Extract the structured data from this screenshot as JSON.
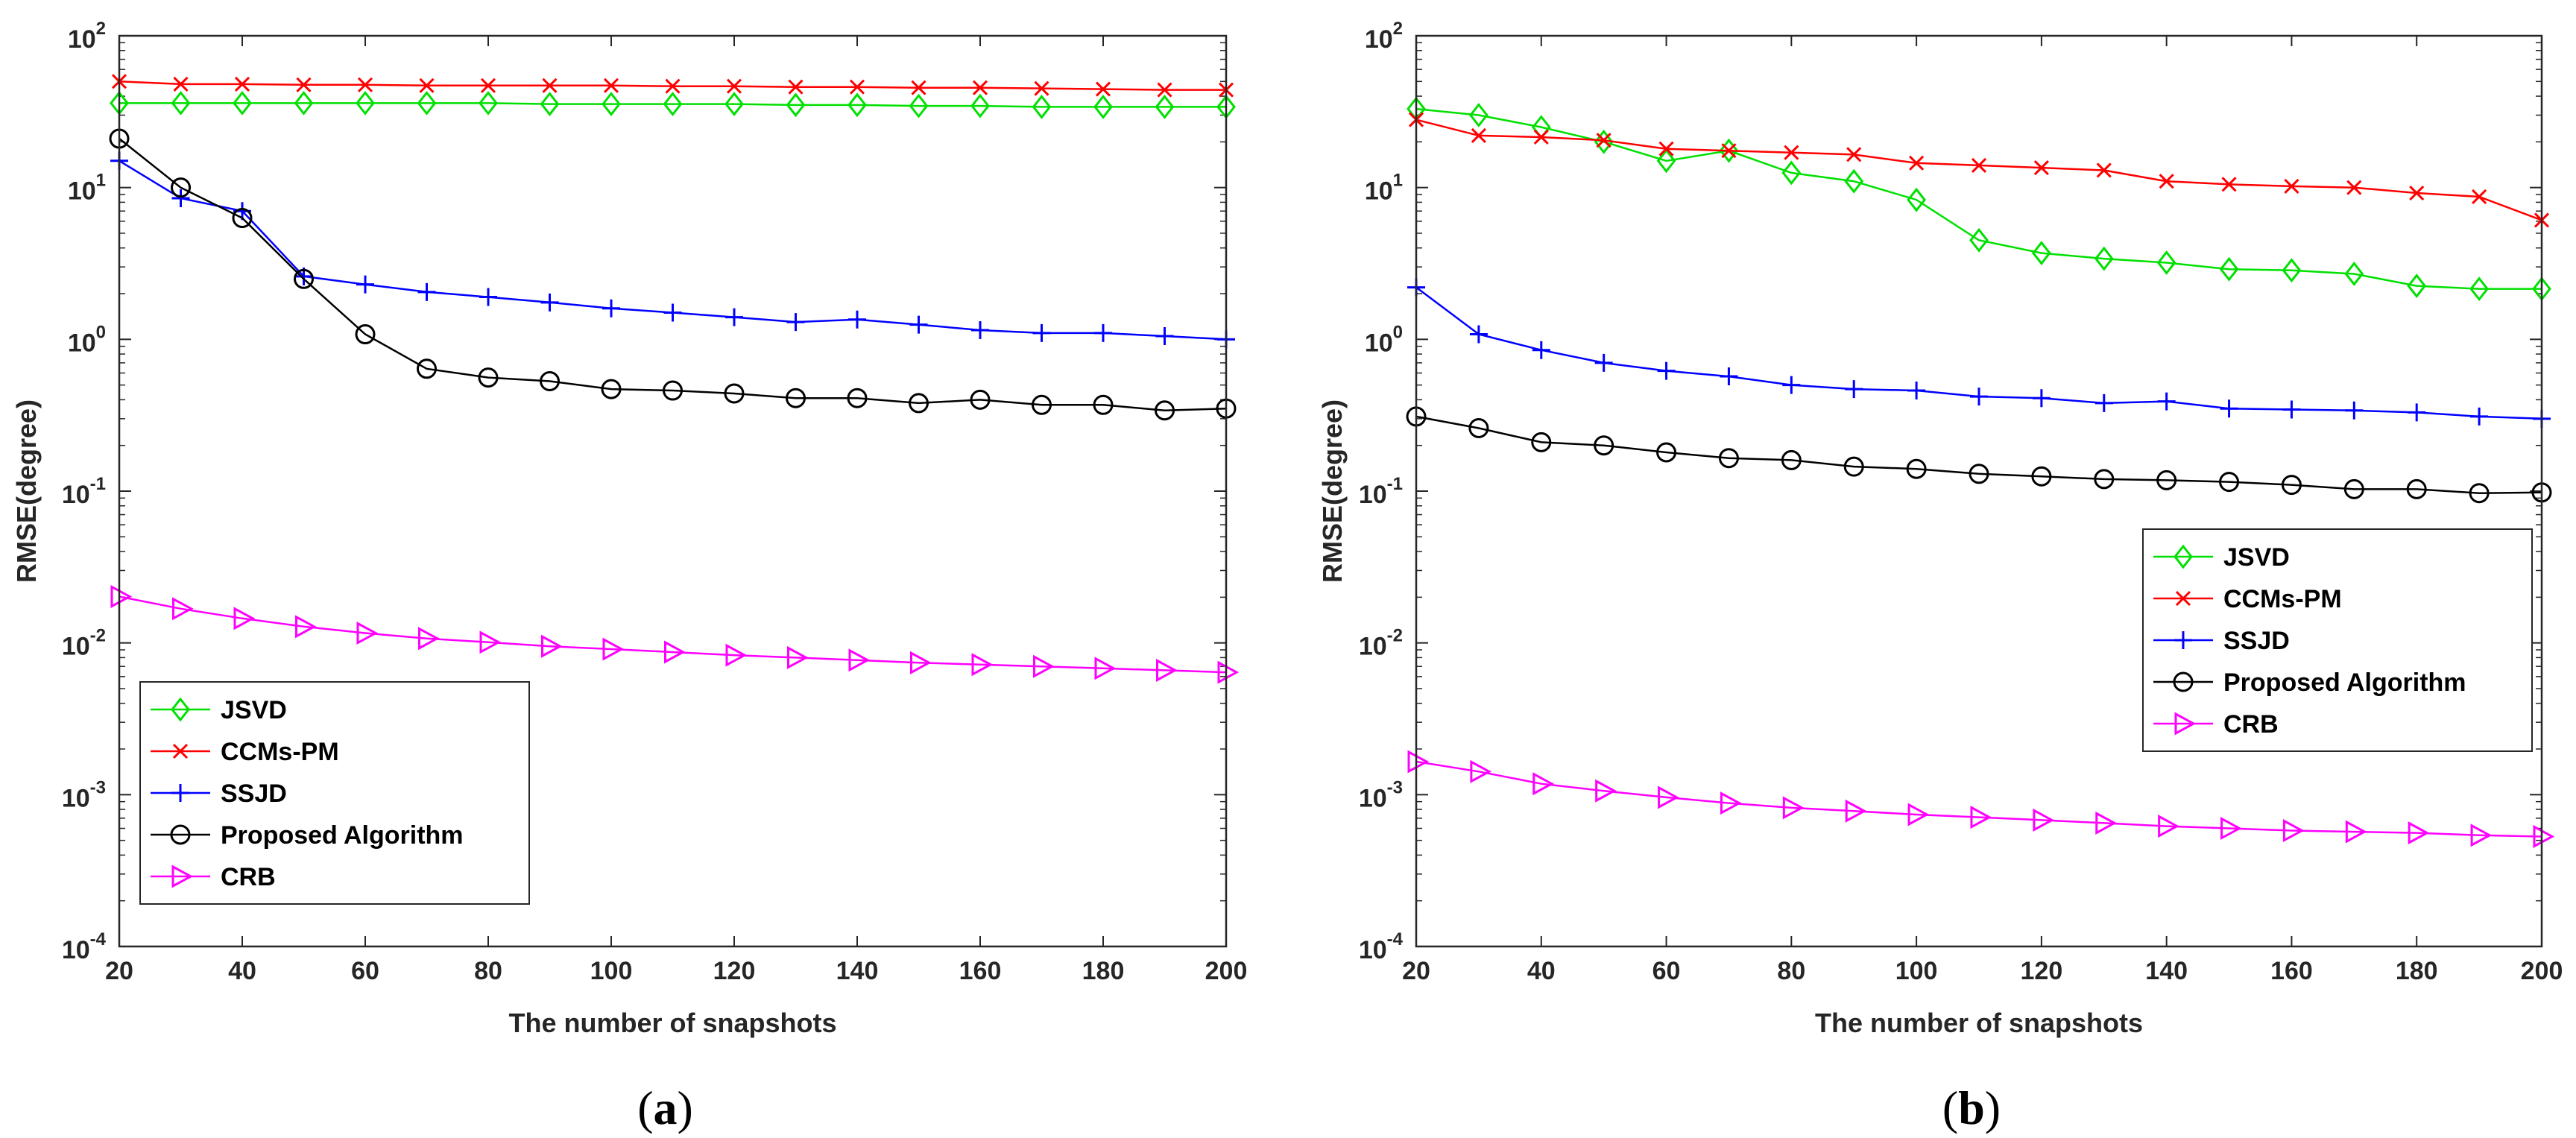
{
  "chart_data": [
    {
      "type": "line",
      "panel_label": "(a)",
      "panel_letter": "a",
      "xlabel": "The number of snapshots",
      "ylabel": "RMSE(degree)",
      "yscale": "log",
      "xlim": [
        20,
        200
      ],
      "ylim": [
        0.0001,
        100
      ],
      "xticks": [
        20,
        40,
        60,
        80,
        100,
        120,
        140,
        160,
        180,
        200
      ],
      "yticks": [
        {
          "base": "10",
          "exp": "-4"
        },
        {
          "base": "10",
          "exp": "-3"
        },
        {
          "base": "10",
          "exp": "-2"
        },
        {
          "base": "10",
          "exp": "-1"
        },
        {
          "base": "10",
          "exp": "0"
        },
        {
          "base": "10",
          "exp": "1"
        },
        {
          "base": "10",
          "exp": "2"
        }
      ],
      "legend_position": "bottom-left",
      "x": [
        20,
        30,
        40,
        50,
        60,
        70,
        80,
        90,
        100,
        110,
        120,
        130,
        140,
        150,
        160,
        170,
        180,
        190,
        200
      ],
      "series": [
        {
          "name": "JSVD",
          "color": "#00e000",
          "marker": "diamond",
          "values": [
            36,
            36,
            36,
            36,
            36,
            36,
            36,
            35.5,
            35.5,
            35.5,
            35.5,
            35,
            35,
            34.5,
            34.5,
            34,
            34,
            34,
            34
          ]
        },
        {
          "name": "CCMs-PM",
          "color": "#ff0000",
          "marker": "x",
          "values": [
            50,
            48,
            48,
            47.5,
            47.5,
            47,
            47,
            47,
            47,
            46.5,
            46.5,
            46,
            46,
            45.5,
            45.5,
            45,
            44.5,
            44,
            44
          ]
        },
        {
          "name": "SSJD",
          "color": "#0000ff",
          "marker": "plus",
          "values": [
            15,
            8.5,
            7,
            2.6,
            2.3,
            2.05,
            1.9,
            1.75,
            1.6,
            1.5,
            1.4,
            1.3,
            1.35,
            1.25,
            1.15,
            1.1,
            1.1,
            1.05,
            1.0
          ]
        },
        {
          "name": "Proposed Algorithm",
          "color": "#000000",
          "marker": "circle",
          "values": [
            21,
            10,
            6.3,
            2.5,
            1.08,
            0.64,
            0.56,
            0.53,
            0.47,
            0.46,
            0.44,
            0.41,
            0.41,
            0.38,
            0.4,
            0.37,
            0.37,
            0.34,
            0.35
          ]
        },
        {
          "name": "CRB",
          "color": "#ff00ff",
          "marker": "triangle-right",
          "values": [
            0.0202,
            0.0168,
            0.0145,
            0.0128,
            0.0116,
            0.0107,
            0.0101,
            0.0095,
            0.0091,
            0.0087,
            0.0083,
            0.008,
            0.0077,
            0.0074,
            0.0072,
            0.007,
            0.0068,
            0.0066,
            0.0064
          ]
        }
      ]
    },
    {
      "type": "line",
      "panel_label": "(b)",
      "panel_letter": "b",
      "xlabel": "The number of snapshots",
      "ylabel": "RMSE(degree)",
      "yscale": "log",
      "xlim": [
        20,
        200
      ],
      "ylim": [
        0.0001,
        100
      ],
      "xticks": [
        20,
        40,
        60,
        80,
        100,
        120,
        140,
        160,
        180,
        200
      ],
      "yticks": [
        {
          "base": "10",
          "exp": "-4"
        },
        {
          "base": "10",
          "exp": "-3"
        },
        {
          "base": "10",
          "exp": "-2"
        },
        {
          "base": "10",
          "exp": "-1"
        },
        {
          "base": "10",
          "exp": "0"
        },
        {
          "base": "10",
          "exp": "1"
        },
        {
          "base": "10",
          "exp": "2"
        }
      ],
      "legend_position": "right",
      "x": [
        20,
        30,
        40,
        50,
        60,
        70,
        80,
        90,
        100,
        110,
        120,
        130,
        140,
        150,
        160,
        170,
        180,
        190,
        200
      ],
      "series": [
        {
          "name": "JSVD",
          "color": "#00e000",
          "marker": "diamond",
          "values": [
            33,
            30,
            25,
            20,
            15,
            17.5,
            12.5,
            11,
            8.3,
            4.5,
            3.7,
            3.4,
            3.2,
            2.9,
            2.85,
            2.7,
            2.25,
            2.15,
            2.15
          ]
        },
        {
          "name": "CCMs-PM",
          "color": "#ff0000",
          "marker": "x",
          "values": [
            28,
            22,
            21.5,
            20.5,
            18,
            17.5,
            17,
            16.5,
            14.5,
            14,
            13.5,
            13,
            11,
            10.5,
            10.2,
            10,
            9.2,
            8.7,
            6.1
          ]
        },
        {
          "name": "SSJD",
          "color": "#0000ff",
          "marker": "plus",
          "values": [
            2.2,
            1.08,
            0.85,
            0.7,
            0.62,
            0.57,
            0.5,
            0.47,
            0.46,
            0.42,
            0.41,
            0.38,
            0.39,
            0.35,
            0.345,
            0.34,
            0.33,
            0.31,
            0.3
          ]
        },
        {
          "name": "Proposed Algorithm",
          "color": "#000000",
          "marker": "circle",
          "values": [
            0.31,
            0.26,
            0.21,
            0.2,
            0.18,
            0.165,
            0.16,
            0.145,
            0.14,
            0.13,
            0.125,
            0.12,
            0.118,
            0.115,
            0.11,
            0.103,
            0.103,
            0.097,
            0.098
          ]
        },
        {
          "name": "CRB",
          "color": "#ff00ff",
          "marker": "triangle-right",
          "values": [
            0.00165,
            0.00142,
            0.00118,
            0.00106,
            0.00096,
            0.00088,
            0.00082,
            0.00078,
            0.00074,
            0.00071,
            0.00068,
            0.00065,
            0.00062,
            0.0006,
            0.00058,
            0.00057,
            0.00056,
            0.00054,
            0.00053
          ]
        }
      ]
    }
  ]
}
